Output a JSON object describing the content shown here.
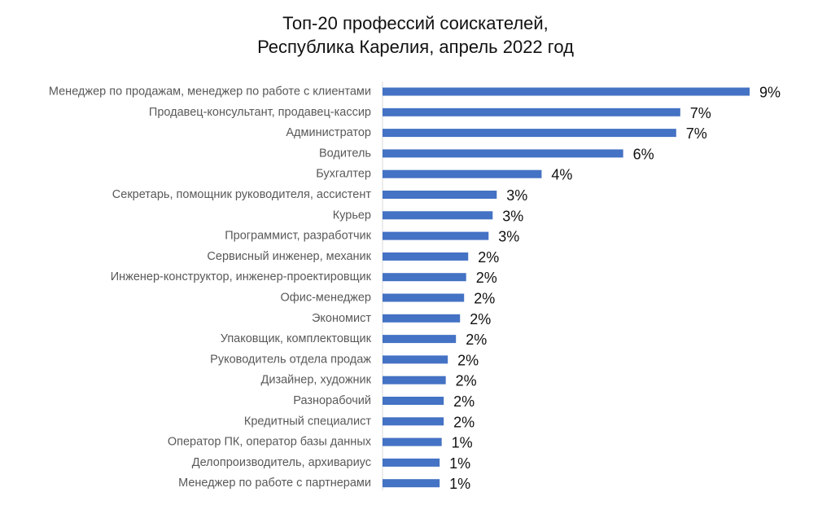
{
  "chart_data": {
    "type": "bar",
    "orientation": "horizontal",
    "title_lines": [
      "Топ-20 профессий соискателей,",
      "Республика Карелия, апрель 2022 год"
    ],
    "xlabel": "",
    "ylabel": "",
    "grid": false,
    "legend": "none",
    "bar_color": "#4472C4",
    "xlim": [
      0,
      9.6
    ],
    "categories": [
      "Менеджер по продажам, менеджер по работе с клиентами",
      "Продавец-консультант, продавец-кассир",
      "Администратор",
      "Водитель",
      "Бухгалтер",
      "Секретарь, помощник руководителя, ассистент",
      "Курьер",
      "Программист, разработчик",
      "Сервисный инженер, механик",
      "Инженер-конструктор, инженер-проектировщик",
      "Офис-менеджер",
      "Экономист",
      "Упаковщик, комплектовщик",
      "Руководитель отдела продаж",
      "Дизайнер, художник",
      "Разнорабочий",
      "Кредитный специалист",
      "Оператор ПК, оператор базы данных",
      "Делопроизводитель, архивариус",
      "Менеджер по работе с партнерами"
    ],
    "values": [
      9.0,
      7.3,
      7.2,
      5.9,
      3.9,
      2.8,
      2.7,
      2.6,
      2.1,
      2.05,
      2.0,
      1.9,
      1.8,
      1.6,
      1.55,
      1.5,
      1.5,
      1.45,
      1.4,
      1.4
    ],
    "data_labels": [
      "9%",
      "7%",
      "7%",
      "6%",
      "4%",
      "3%",
      "3%",
      "3%",
      "2%",
      "2%",
      "2%",
      "2%",
      "2%",
      "2%",
      "2%",
      "2%",
      "2%",
      "1%",
      "1%",
      "1%"
    ]
  }
}
